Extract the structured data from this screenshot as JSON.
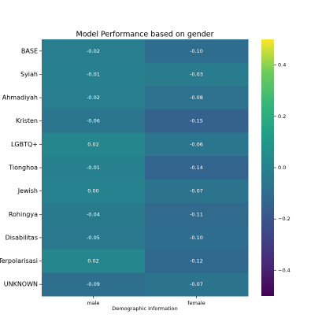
{
  "chart_data": {
    "type": "heatmap",
    "title": "Model Performance based on gender",
    "xlabel": "Demographic Information",
    "x_categories": [
      "male",
      "female"
    ],
    "categories": [
      "BASE",
      "Syiah",
      "Ahmadiyah",
      "Kristen",
      "LGBTQ+",
      "Tionghoa",
      "Jewish",
      "Rohingya",
      "Disabilitas",
      "Terpolarisasi",
      "UNKNOWN"
    ],
    "values": [
      [
        -0.02,
        -0.1
      ],
      [
        -0.01,
        -0.03
      ],
      [
        -0.02,
        -0.08
      ],
      [
        -0.06,
        -0.15
      ],
      [
        0.02,
        -0.06
      ],
      [
        -0.01,
        -0.14
      ],
      [
        0.0,
        -0.07
      ],
      [
        -0.04,
        -0.11
      ],
      [
        -0.05,
        -0.1
      ],
      [
        0.02,
        -0.12
      ],
      [
        -0.09,
        -0.07
      ]
    ],
    "value_labels": [
      [
        "-0.02",
        "-0.10"
      ],
      [
        "-0.01",
        "-0.03"
      ],
      [
        "-0.02",
        "-0.08"
      ],
      [
        "-0.06",
        "-0.15"
      ],
      [
        "0.02",
        "-0.06"
      ],
      [
        "-0.01",
        "-0.14"
      ],
      [
        "0.00",
        "-0.07"
      ],
      [
        "-0.04",
        "-0.11"
      ],
      [
        "-0.05",
        "-0.10"
      ],
      [
        "0.02",
        "-0.12"
      ],
      [
        "-0.09",
        "-0.07"
      ]
    ],
    "colormap": "viridis",
    "zlim": [
      -0.5,
      0.5
    ],
    "zticks": [
      0.4,
      0.2,
      {
        "value": 0,
        "label": "0.0"
      },
      {
        "value": -0.2,
        "label": "−0.2"
      },
      {
        "value": -0.4,
        "label": "−0.4"
      }
    ]
  }
}
